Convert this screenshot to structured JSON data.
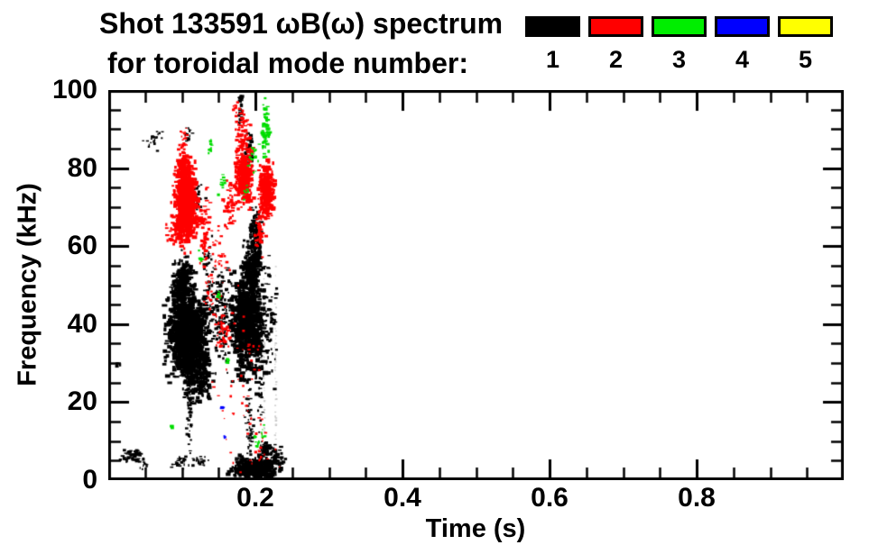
{
  "chart_data": {
    "type": "scatter",
    "title_line1": "Shot 133591 ωB(ω) spectrum",
    "title_line2": "for toroidal mode number:",
    "xlabel": "Time (s)",
    "ylabel": "Frequency (kHz)",
    "xlim": [
      0,
      1.0
    ],
    "ylim": [
      0,
      100
    ],
    "x_major_ticks": [
      0.2,
      0.4,
      0.6,
      0.8
    ],
    "x_minor_step": 0.05,
    "y_major_ticks": [
      0,
      20,
      40,
      60,
      80,
      100
    ],
    "y_minor_step": 5,
    "grid": false,
    "legend_position": "top-right",
    "legend": [
      {
        "label": "1",
        "color": "#000000"
      },
      {
        "label": "2",
        "color": "#ff0000"
      },
      {
        "label": "3",
        "color": "#00ee00"
      },
      {
        "label": "4",
        "color": "#0000ff"
      },
      {
        "label": "5",
        "color": "#ffff00"
      }
    ],
    "modes_visible": [
      {
        "mode": 1,
        "color": "#000000",
        "freq_band_khz": [
          0,
          62
        ],
        "time_range_s": [
          0.01,
          0.24
        ],
        "note": "dense activity 25-60 kHz in bursts at t=0.08-0.13 and t=0.17-0.21, plus 0-8 kHz band t=0.15-0.23"
      },
      {
        "mode": 2,
        "color": "#ff0000",
        "freq_band_khz": [
          55,
          96
        ],
        "time_range_s": [
          0.09,
          0.22
        ],
        "note": "dense blobs 63-82 kHz at t=0.09-0.12, 0.17-0.19, 0.205-0.22"
      },
      {
        "mode": 3,
        "color": "#00dd00",
        "freq_band_khz": [
          10,
          96
        ],
        "time_range_s": [
          0.08,
          0.22
        ],
        "note": "sparse dots; short streak 84-96 kHz near t=0.21"
      },
      {
        "mode": 4,
        "color": "#0000ff",
        "freq_band_khz": [
          10,
          19
        ],
        "time_range_s": [
          0.15,
          0.16
        ],
        "note": "one or two tiny dots"
      },
      {
        "mode": 5,
        "color": "#ffff00",
        "freq_band_khz": [],
        "time_range_s": [],
        "note": "none visible"
      }
    ],
    "clusters_fields": [
      "color",
      "t_center_s",
      "f_center_khz",
      "t_spread_s",
      "f_spread_khz",
      "n_points",
      "dot_size_px"
    ],
    "clusters": [
      [
        "#c8c8c8",
        0.211,
        28,
        0.0005,
        15,
        55,
        1.3
      ],
      [
        "#c8c8c8",
        0.2265,
        28,
        0.0005,
        15,
        55,
        1.3
      ],
      [
        "#000000",
        0.105,
        38,
        0.014,
        5.5,
        900,
        3.5
      ],
      [
        "#000000",
        0.098,
        50,
        0.008,
        4,
        280,
        3
      ],
      [
        "#000000",
        0.118,
        28,
        0.01,
        4,
        260,
        3
      ],
      [
        "#000000",
        0.186,
        41,
        0.011,
        7,
        750,
        3.5
      ],
      [
        "#000000",
        0.192,
        54,
        0.006,
        4,
        200,
        3
      ],
      [
        "#000000",
        0.198,
        63,
        0.004,
        4,
        130,
        3
      ],
      [
        "#000000",
        0.152,
        42,
        0.012,
        7,
        170,
        2.5
      ],
      [
        "#000000",
        0.215,
        42,
        0.007,
        9,
        90,
        2.5
      ],
      [
        "#000000",
        0.108,
        20,
        0.002,
        6,
        60,
        2
      ],
      [
        "#000000",
        0.19,
        16,
        0.003,
        6,
        55,
        2
      ],
      [
        "#000000",
        0.205,
        26,
        0.002,
        8,
        45,
        2
      ],
      [
        "#000000",
        0.195,
        3,
        0.015,
        1.7,
        420,
        3
      ],
      [
        "#000000",
        0.225,
        5,
        0.007,
        2.2,
        90,
        2.5
      ],
      [
        "#000000",
        0.21,
        8.5,
        0.004,
        1.5,
        40,
        2.5
      ],
      [
        "#000000",
        0.032,
        6.3,
        0.008,
        0.9,
        55,
        2.5
      ],
      [
        "#000000",
        0.048,
        4.2,
        0.003,
        0.8,
        10,
        2
      ],
      [
        "#000000",
        0.093,
        5,
        0.007,
        0.9,
        28,
        2
      ],
      [
        "#000000",
        0.122,
        5,
        0.005,
        0.9,
        24,
        2
      ],
      [
        "#000000",
        0.012,
        30,
        0.0015,
        0.6,
        6,
        2.5
      ],
      [
        "#000000",
        0.178,
        97.5,
        0.002,
        1.2,
        14,
        2.5
      ],
      [
        "#000000",
        0.06,
        87.5,
        0.007,
        1.2,
        22,
        2
      ],
      [
        "#000000",
        0.107,
        89,
        0.003,
        1.3,
        16,
        2
      ],
      [
        "#000000",
        0.19,
        84.5,
        0.003,
        2.5,
        40,
        2.5
      ],
      [
        "#000000",
        0.178,
        93.5,
        0.002,
        1.5,
        14,
        2
      ],
      [
        "#000000",
        0.12,
        72,
        0.004,
        3,
        35,
        2
      ],
      [
        "#000000",
        0.133,
        57,
        0.004,
        4,
        30,
        2
      ],
      [
        "#ff0000",
        0.103,
        71,
        0.0075,
        4.5,
        600,
        3.5
      ],
      [
        "#ff0000",
        0.1,
        79,
        0.005,
        3,
        160,
        3
      ],
      [
        "#ff0000",
        0.094,
        64,
        0.009,
        2.5,
        80,
        2.5
      ],
      [
        "#ff0000",
        0.182,
        78,
        0.006,
        4,
        300,
        3
      ],
      [
        "#ff0000",
        0.213,
        74.5,
        0.005,
        3.5,
        280,
        3
      ],
      [
        "#ff0000",
        0.18,
        90,
        0.005,
        2.8,
        55,
        2.5
      ],
      [
        "#ff0000",
        0.205,
        64,
        0.0035,
        3,
        45,
        2.5
      ],
      [
        "#ff0000",
        0.163,
        70,
        0.005,
        3.5,
        45,
        2.5
      ],
      [
        "#ff0000",
        0.128,
        64,
        0.006,
        5,
        60,
        2.5
      ],
      [
        "#ff0000",
        0.146,
        57,
        0.01,
        7,
        45,
        2
      ],
      [
        "#ff0000",
        0.155,
        38.5,
        0.007,
        3,
        40,
        2.5
      ],
      [
        "#ff0000",
        0.19,
        30,
        0.01,
        8,
        22,
        2
      ],
      [
        "#ff0000",
        0.165,
        19,
        0.014,
        6,
        16,
        2
      ],
      [
        "#ff0000",
        0.205,
        11,
        0.009,
        4,
        14,
        2
      ],
      [
        "#ff0000",
        0.102,
        87,
        0.004,
        2,
        22,
        2
      ],
      [
        "#ff0000",
        0.135,
        49,
        0.004,
        3,
        18,
        2
      ],
      [
        "#ff0000",
        0.172,
        96,
        0.003,
        1.5,
        10,
        2
      ],
      [
        "#ff0000",
        0.2,
        5,
        0.02,
        3,
        12,
        2
      ],
      [
        "#00dd00",
        0.212,
        90,
        0.0025,
        3.8,
        65,
        2.5
      ],
      [
        "#00dd00",
        0.196,
        83,
        0.004,
        2,
        20,
        2
      ],
      [
        "#00dd00",
        0.139,
        85.5,
        0.002,
        1.5,
        14,
        2
      ],
      [
        "#00dd00",
        0.152,
        76,
        0.003,
        1.5,
        12,
        2
      ],
      [
        "#00dd00",
        0.186,
        74,
        0.002,
        1.2,
        8,
        2
      ],
      [
        "#00dd00",
        0.125,
        57.5,
        0.0015,
        1,
        6,
        2
      ],
      [
        "#00dd00",
        0.148,
        47,
        0.0015,
        1,
        6,
        2
      ],
      [
        "#00dd00",
        0.085,
        14,
        0.001,
        0.6,
        5,
        2
      ],
      [
        "#00dd00",
        0.2,
        10.5,
        0.002,
        1.5,
        10,
        2
      ],
      [
        "#00dd00",
        0.209,
        12,
        0.0015,
        1.2,
        7,
        2
      ],
      [
        "#00dd00",
        0.16,
        30.5,
        0.001,
        0.8,
        5,
        2
      ],
      [
        "#0000ff",
        0.153,
        18.5,
        0.0008,
        0.5,
        3,
        2.5
      ],
      [
        "#0000ff",
        0.157,
        11,
        0.0008,
        0.5,
        3,
        2
      ]
    ]
  }
}
